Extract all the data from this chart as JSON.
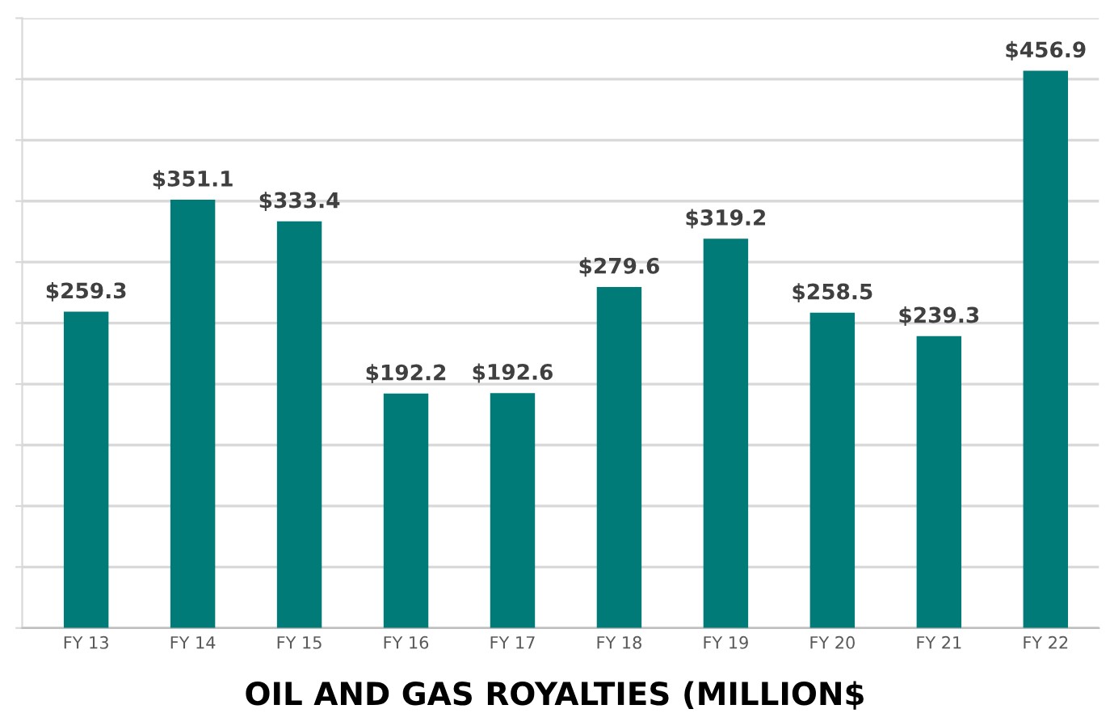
{
  "chart_data": {
    "type": "bar",
    "title": "OIL AND GAS ROYALTIES (MILLION$",
    "categories": [
      "FY 13",
      "FY 14",
      "FY 15",
      "FY 16",
      "FY 17",
      "FY 18",
      "FY 19",
      "FY 20",
      "FY 21",
      "FY 22"
    ],
    "values": [
      259.3,
      351.1,
      333.4,
      192.2,
      192.6,
      279.6,
      319.2,
      258.5,
      239.3,
      456.9
    ],
    "value_labels": [
      "$259.3",
      "$351.1",
      "$333.4",
      "$192.2",
      "$192.6",
      "$279.6",
      "$319.2",
      "$258.5",
      "$239.3",
      "$456.9"
    ],
    "color": "#007b78",
    "ylim": [
      0,
      500
    ],
    "yticks": [
      {
        "value": 0,
        "label": null
      },
      {
        "value": 50,
        "label": null
      },
      {
        "value": 100,
        "label": null
      },
      {
        "value": 150,
        "label": null
      },
      {
        "value": 200,
        "label": null
      },
      {
        "value": 250,
        "label": null
      },
      {
        "value": 300,
        "label": null
      },
      {
        "value": 350,
        "label": null
      },
      {
        "value": 400,
        "label": null
      },
      {
        "value": 450,
        "label": null
      },
      {
        "value": 500,
        "label": null
      }
    ],
    "grid": "y",
    "tick_labels": "x"
  }
}
